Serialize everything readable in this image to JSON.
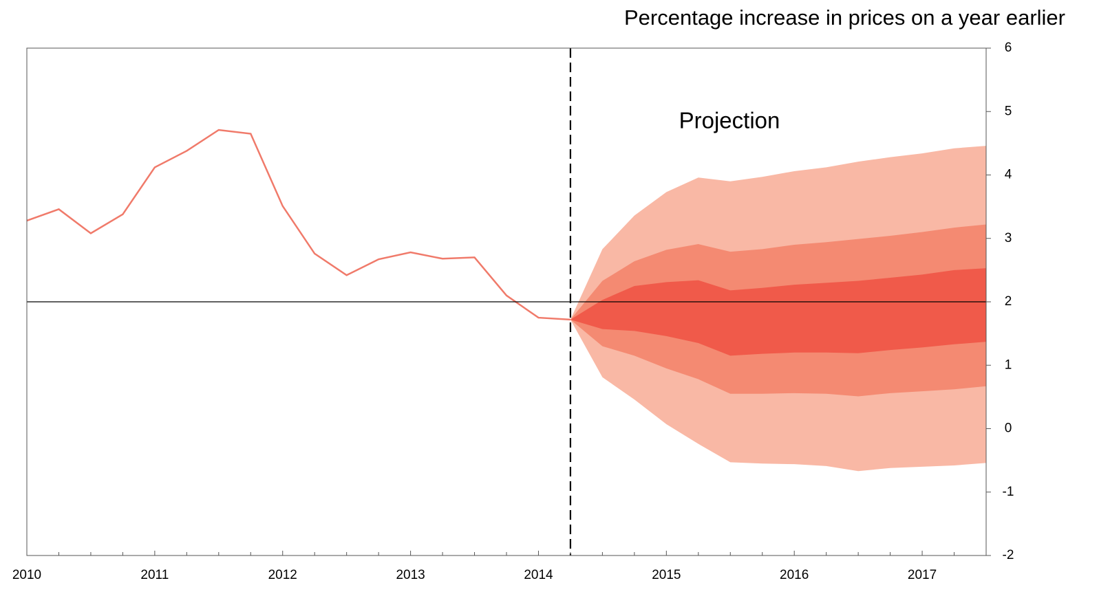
{
  "chart_data": {
    "type": "fan",
    "title": "Percentage increase in prices on a year earlier",
    "annotation": "Projection",
    "xlim": [
      2010,
      2017.5
    ],
    "xticks": [
      2010,
      2011,
      2012,
      2013,
      2014,
      2015,
      2016,
      2017
    ],
    "xminorticks": [
      2010.25,
      2010.5,
      2010.75,
      2011.25,
      2011.5,
      2011.75,
      2012.25,
      2012.5,
      2012.75,
      2013.25,
      2013.5,
      2013.75,
      2014.25,
      2014.5,
      2014.75,
      2015.25,
      2015.5,
      2015.75,
      2016.25,
      2016.5,
      2016.75,
      2017.25
    ],
    "ylim": [
      -2,
      6
    ],
    "yticks": [
      -2,
      -1,
      0,
      1,
      2,
      3,
      4,
      5,
      6
    ],
    "yaxis_side": "right",
    "hline": 2,
    "vline": 2014.25,
    "history": {
      "color": "#f07a6a",
      "x": [
        2010,
        2010.25,
        2010.5,
        2010.75,
        2011,
        2011.25,
        2011.5,
        2011.75,
        2012,
        2012.25,
        2012.5,
        2012.75,
        2013,
        2013.25,
        2013.5,
        2013.75,
        2014,
        2014.25
      ],
      "values": [
        3.28,
        3.46,
        3.08,
        3.38,
        4.12,
        4.38,
        4.71,
        4.65,
        3.51,
        2.76,
        2.42,
        2.67,
        2.78,
        2.68,
        2.7,
        2.1,
        1.75,
        1.72
      ]
    },
    "fan": {
      "x": [
        2014.25,
        2014.5,
        2014.75,
        2015,
        2015.25,
        2015.5,
        2015.75,
        2016,
        2016.25,
        2016.5,
        2016.75,
        2017,
        2017.25,
        2017.5
      ],
      "bands": [
        {
          "color": "#f9b8a5",
          "upper": [
            1.72,
            2.83,
            3.36,
            3.73,
            3.96,
            3.9,
            3.97,
            4.06,
            4.12,
            4.21,
            4.28,
            4.34,
            4.42,
            4.46
          ],
          "lower": [
            1.72,
            0.81,
            0.46,
            0.07,
            -0.24,
            -0.53,
            -0.55,
            -0.56,
            -0.59,
            -0.67,
            -0.62,
            -0.6,
            -0.58,
            -0.54
          ]
        },
        {
          "color": "#f48a72",
          "upper": [
            1.72,
            2.33,
            2.64,
            2.82,
            2.91,
            2.79,
            2.83,
            2.9,
            2.94,
            2.99,
            3.04,
            3.1,
            3.17,
            3.22
          ],
          "lower": [
            1.72,
            1.3,
            1.15,
            0.95,
            0.78,
            0.55,
            0.55,
            0.56,
            0.55,
            0.51,
            0.56,
            0.59,
            0.62,
            0.67
          ]
        },
        {
          "color": "#f05a4a",
          "upper": [
            1.72,
            2.03,
            2.25,
            2.31,
            2.34,
            2.18,
            2.22,
            2.27,
            2.3,
            2.33,
            2.38,
            2.43,
            2.5,
            2.53
          ],
          "lower": [
            1.72,
            1.57,
            1.54,
            1.46,
            1.35,
            1.15,
            1.18,
            1.2,
            1.2,
            1.19,
            1.24,
            1.28,
            1.33,
            1.37
          ]
        }
      ]
    }
  }
}
